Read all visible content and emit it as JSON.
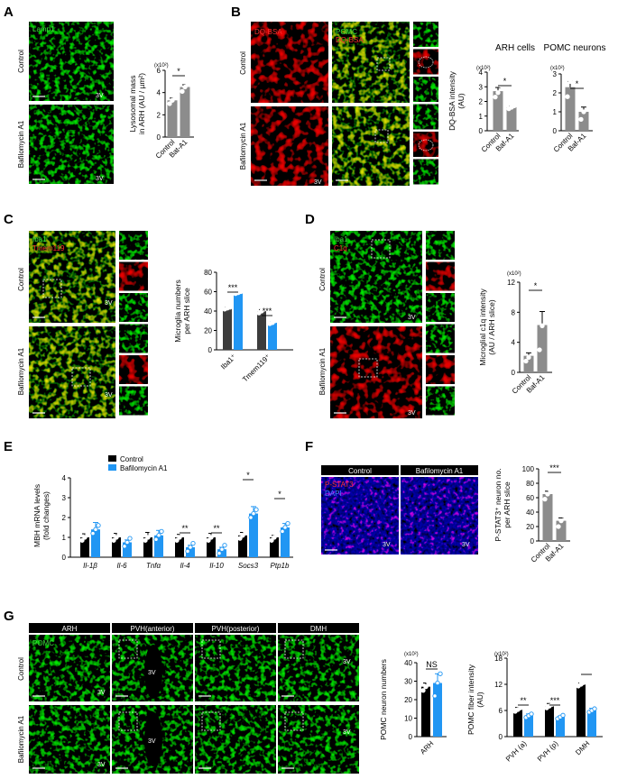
{
  "panels": {
    "A": {
      "letter": "A",
      "stain": "Lamp1",
      "conditions": [
        "Control",
        "Bafilomycin A1"
      ],
      "region_label": "3V",
      "ylabel_lines": [
        "Lysosomal mass",
        "in ARH (AU / µm²)"
      ],
      "exponent": "(x10²)",
      "significance": "*"
    },
    "B": {
      "letter": "B",
      "stain_left": "DQ-BSA",
      "stain_right_lines": [
        "POMC",
        "DQ-BSA"
      ],
      "conditions": [
        "Control",
        "Bafilomycin A1"
      ],
      "region_label": "3V",
      "ylabel_lines": [
        "DQ-BSA intensity",
        "(AU)"
      ],
      "chart_titles": [
        "ARH cells",
        "POMC neurons"
      ],
      "exponent": "(x10²)",
      "significance": [
        "*",
        "*"
      ]
    },
    "C": {
      "letter": "C",
      "stain_lines": [
        "Iba1",
        "Tmem119"
      ],
      "conditions": [
        "Control",
        "Bafilomycin A1"
      ],
      "region_label": "3V",
      "ylabel_lines": [
        "Microglia numbers",
        "per ARH slice"
      ],
      "significance": [
        "***",
        "***"
      ]
    },
    "D": {
      "letter": "D",
      "stain_lines": [
        "Iba1",
        "C1q"
      ],
      "conditions": [
        "Control",
        "Bafilomycin A1"
      ],
      "region_label": "3V",
      "ylabel_lines": [
        "Microglial c1q intensity",
        "(AU / ARH slice)"
      ],
      "exponent": "(x10²)",
      "significance": "*"
    },
    "E": {
      "letter": "E",
      "legend": [
        "Control",
        "Bafilomycin A1"
      ],
      "ylabel_lines": [
        "MBH mRNA levels",
        "(fold changes)"
      ],
      "significance": [
        "**",
        "**",
        "*",
        "*"
      ]
    },
    "F": {
      "letter": "F",
      "headers": [
        "Control",
        "Bafilomycin A1"
      ],
      "stain_lines": [
        "P-STAT3",
        "DAPI"
      ],
      "region_label": "3V",
      "ylabel_lines": [
        "P-STAT3⁺ neuron no.",
        "per ARH slice"
      ],
      "significance": "***"
    },
    "G": {
      "letter": "G",
      "stain": "POMC",
      "headers": [
        "ARH",
        "PVH(anterior)",
        "PVH(posterior)",
        "DMH"
      ],
      "conditions": [
        "Control",
        "Bafilomycin A1"
      ],
      "region_label": "3V",
      "ylabel_left": "POMC neuron numbers",
      "ylabel_right_lines": [
        "POMC fiber intensity",
        "(AU)"
      ],
      "exponent": "(x10²)",
      "significance": [
        "NS",
        "*",
        "**",
        "***"
      ]
    }
  },
  "colors": {
    "control": "#000000",
    "bafilomycin": "#2196f3",
    "gray_bar": "#8c8c8c",
    "dark_bar": "#3c3c3c",
    "green_stain": "#3ddc3d",
    "red_stain": "#ff3030",
    "blue_stain": "#2848ff"
  },
  "chart_data": [
    {
      "panel": "A",
      "type": "bar",
      "categories": [
        "Control",
        "Bat-A1"
      ],
      "values": [
        3.3,
        4.5
      ],
      "points": [
        [
          3.0,
          3.3,
          3.6
        ],
        [
          4.1,
          4.5,
          4.8
        ]
      ],
      "errors": [
        0.2,
        0.2
      ],
      "ylim": [
        0,
        6
      ],
      "yticks": [
        0,
        2,
        4,
        6
      ],
      "exponent": "(x10²)",
      "significance": "*"
    },
    {
      "panel": "B",
      "type": "bar",
      "title": "ARH cells",
      "categories": [
        "Control",
        "Baf-A1"
      ],
      "values": [
        2.7,
        1.6
      ],
      "points": [
        [
          2.3,
          2.6,
          3.1
        ],
        [
          1.5,
          1.6,
          1.7
        ]
      ],
      "errors": [
        0.25,
        0.05
      ],
      "ylim": [
        0,
        4
      ],
      "yticks": [
        0,
        1,
        2,
        3,
        4
      ],
      "exponent": "(x10²)",
      "significance": "*"
    },
    {
      "panel": "B",
      "type": "bar",
      "title": "POMC neurons",
      "categories": [
        "Control",
        "Baf-A1"
      ],
      "values": [
        2.3,
        1.0
      ],
      "points": [
        [
          1.8,
          2.6,
          2.5
        ],
        [
          0.6,
          1.0,
          1.4
        ]
      ],
      "errors": [
        0.3,
        0.25
      ],
      "ylim": [
        0,
        3
      ],
      "yticks": [
        0,
        1,
        2,
        3
      ],
      "exponent": "(x10²)",
      "significance": "*"
    },
    {
      "panel": "C",
      "type": "bar",
      "categories": [
        "Iba1⁺",
        "Tmem119⁺"
      ],
      "series": [
        {
          "values": [
            43,
            40
          ],
          "points": [
            [
              42,
              43,
              44
            ],
            [
              38,
              40,
              42
            ]
          ],
          "errors": [
            1,
            1.5
          ]
        },
        {
          "values": [
            59,
            28
          ],
          "points": [
            [
              58,
              59,
              60
            ],
            [
              27,
              28,
              30
            ]
          ],
          "errors": [
            1,
            1
          ]
        }
      ],
      "ylim": [
        0,
        80
      ],
      "yticks": [
        0,
        20,
        40,
        60,
        80
      ],
      "significance": [
        "***",
        "***"
      ]
    },
    {
      "panel": "D",
      "type": "bar",
      "categories": [
        "Control",
        "Baf-A1"
      ],
      "values": [
        2.2,
        6.3
      ],
      "points": [
        [
          1.5,
          2.0,
          3.0
        ],
        [
          3.0,
          6.2,
          9.5
        ]
      ],
      "errors": [
        0.4,
        1.8
      ],
      "ylim": [
        0,
        12
      ],
      "yticks": [
        0,
        4,
        8,
        12
      ],
      "exponent": "(x10²)",
      "significance": "*"
    },
    {
      "panel": "E",
      "type": "bar",
      "categories": [
        "Il-1β",
        "Il-6",
        "Tnfα",
        "Il-4",
        "Il-10",
        "Socs3",
        "Ptp1b"
      ],
      "series": [
        {
          "name": "Control",
          "values": [
            1.0,
            1.0,
            1.0,
            1.0,
            1.0,
            1.1,
            1.0
          ],
          "errors": [
            0.18,
            0.2,
            0.25,
            0.15,
            0.2,
            0.15,
            0.1
          ]
        },
        {
          "name": "Bafilomycin A1",
          "values": [
            1.4,
            0.75,
            1.1,
            0.5,
            0.4,
            2.2,
            1.5
          ],
          "errors": [
            0.35,
            0.12,
            0.25,
            0.1,
            0.1,
            0.35,
            0.2
          ]
        }
      ],
      "ylim": [
        0,
        4
      ],
      "yticks": [
        0,
        1,
        2,
        3,
        4
      ],
      "significance": [
        "**",
        "**",
        "*",
        "*"
      ]
    },
    {
      "panel": "F",
      "type": "bar",
      "categories": [
        "Control",
        "Baf-A1"
      ],
      "values": [
        65,
        28
      ],
      "points": [
        [
          58,
          65,
          70
        ],
        [
          20,
          28,
          35
        ]
      ],
      "errors": [
        4,
        4
      ],
      "ylim": [
        0,
        100
      ],
      "yticks": [
        0,
        20,
        40,
        60,
        80,
        100
      ],
      "significance": "***"
    },
    {
      "panel": "G",
      "type": "bar",
      "categories": [
        "ARH"
      ],
      "series": [
        {
          "name": "Control",
          "values": [
            27
          ],
          "errors": [
            2
          ]
        },
        {
          "name": "Bafilomycin A1",
          "values": [
            29
          ],
          "errors": [
            5
          ]
        }
      ],
      "ylim": [
        0,
        40
      ],
      "yticks": [
        0,
        10,
        20,
        30,
        40
      ],
      "exponent": "(x10²)",
      "significance": [
        "NS"
      ]
    },
    {
      "panel": "G",
      "type": "bar",
      "categories": [
        "PVH (a)",
        "PVH (p)",
        "DMH"
      ],
      "series": [
        {
          "name": "Control",
          "values": [
            6.2,
            7.0,
            12.0
          ],
          "errors": [
            0.5,
            0.6,
            0.3
          ]
        },
        {
          "name": "Bafilomycin A1",
          "values": [
            4.8,
            4.5,
            6.0
          ],
          "errors": [
            0.4,
            0.2,
            0.5
          ]
        }
      ],
      "ylim": [
        0,
        18
      ],
      "yticks": [
        0,
        6,
        12,
        18
      ],
      "exponent": "(x10²)",
      "significance": [
        "*",
        "**",
        "***"
      ]
    }
  ]
}
